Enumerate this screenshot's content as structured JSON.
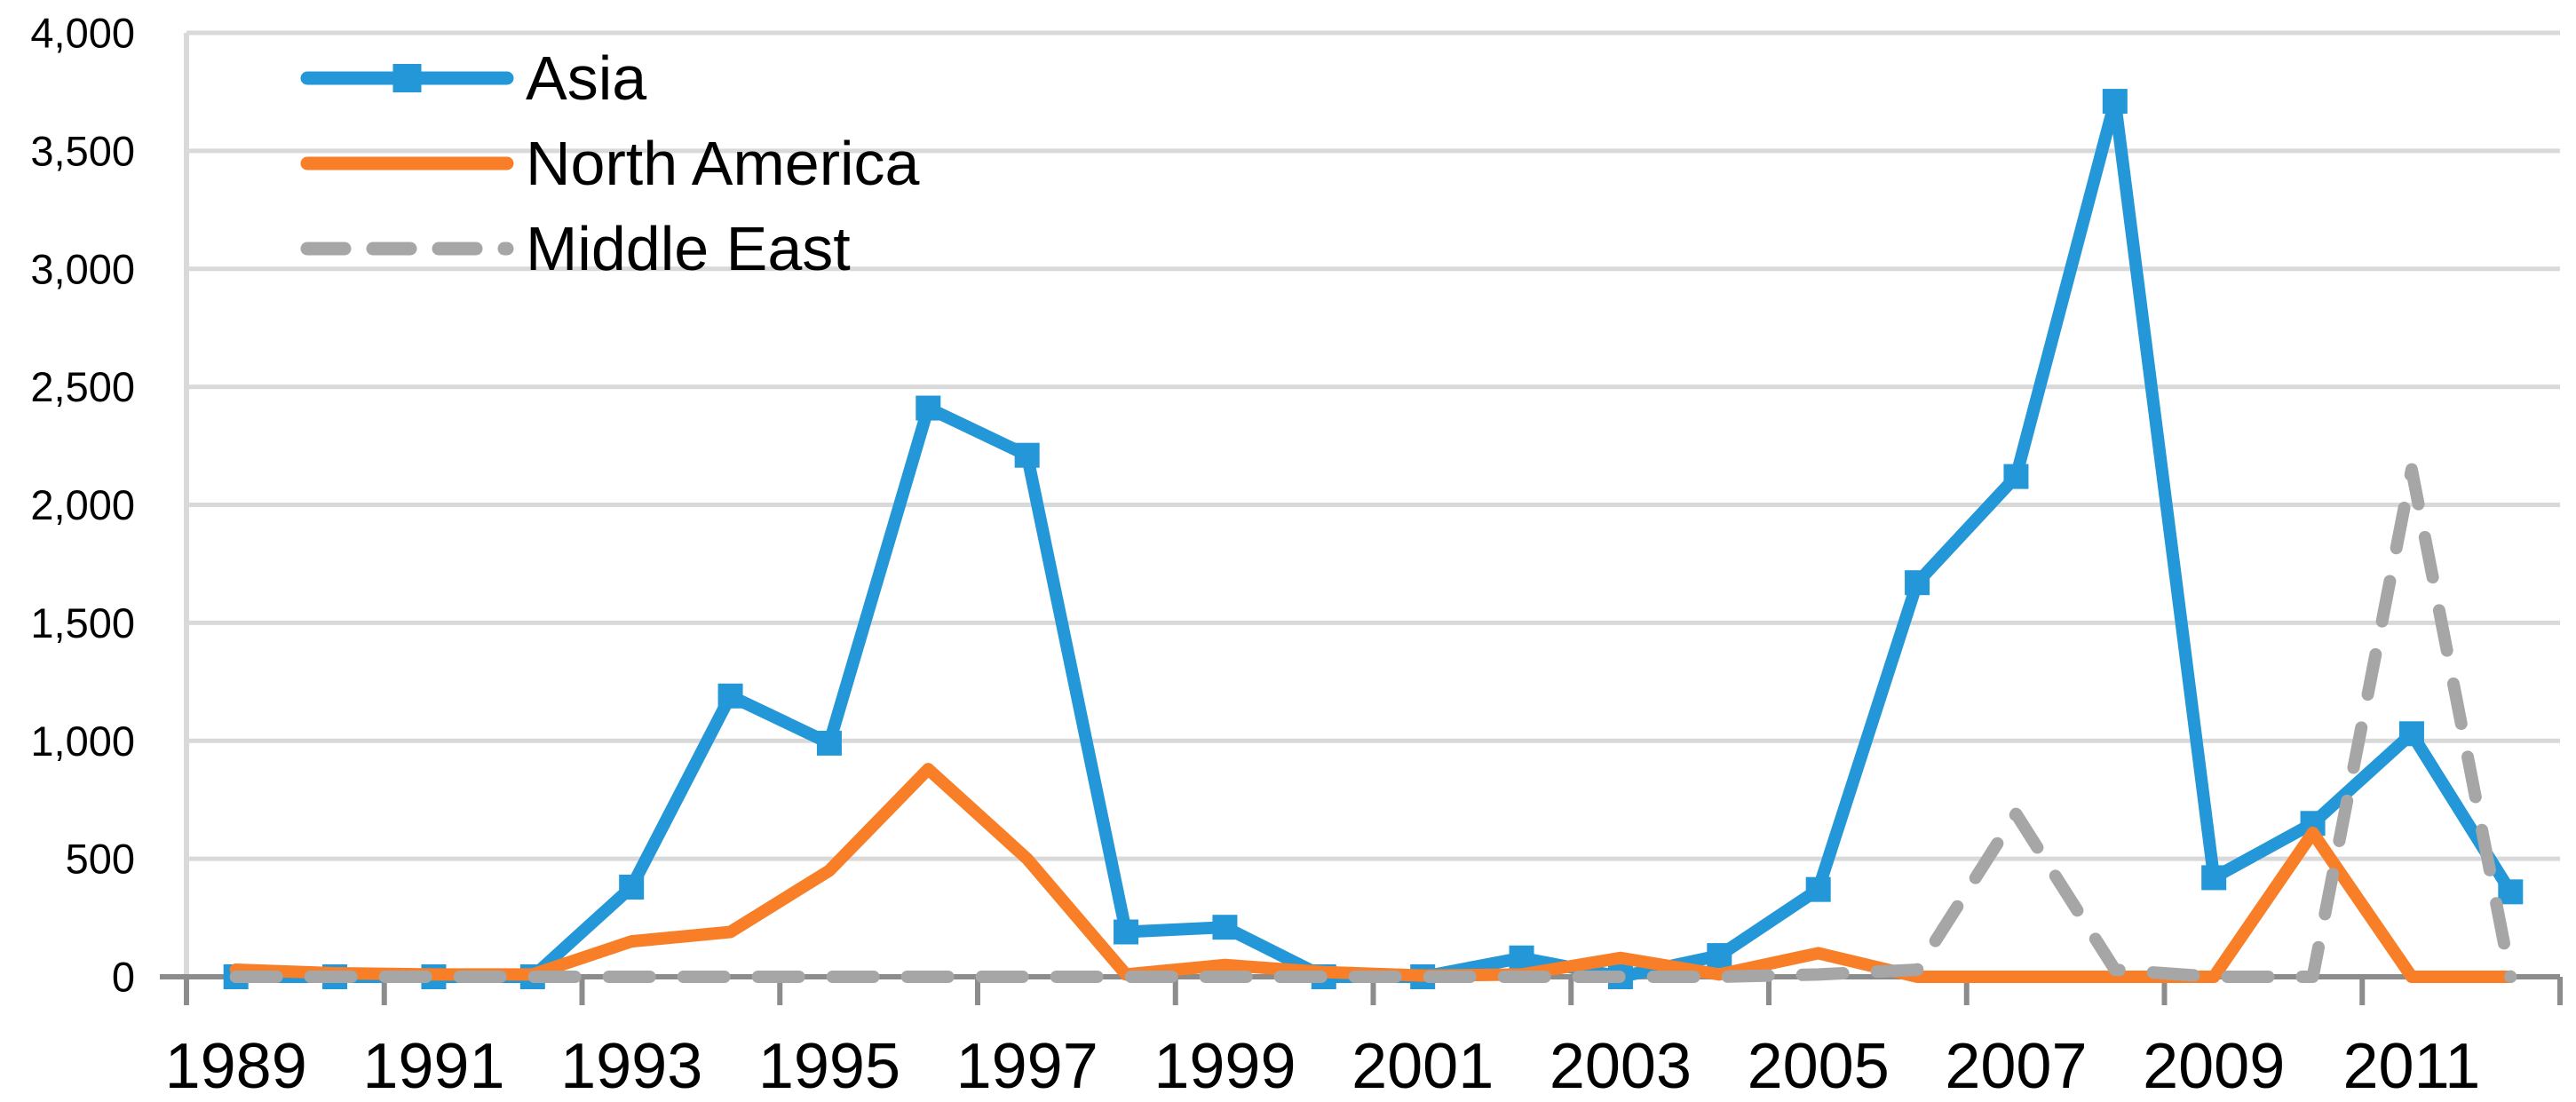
{
  "chart_data": {
    "type": "line",
    "title": "",
    "xlabel": "",
    "ylabel": "",
    "x": [
      1989,
      1990,
      1991,
      1992,
      1993,
      1994,
      1995,
      1996,
      1997,
      1998,
      1999,
      2000,
      2001,
      2002,
      2003,
      2004,
      2005,
      2006,
      2007,
      2008,
      2009,
      2010,
      2011,
      2012
    ],
    "x_tick_labels": [
      "1989",
      "1991",
      "1993",
      "1995",
      "1997",
      "1999",
      "2001",
      "2003",
      "2005",
      "2007",
      "2009",
      "2011"
    ],
    "x_tick_every": 2,
    "ylim": [
      0,
      4000
    ],
    "ytick_step": 500,
    "ytick_labels": [
      "0",
      "500",
      "1,000",
      "1,500",
      "2,000",
      "2,500",
      "3,000",
      "3,500",
      "4,000"
    ],
    "grid": "horizontal",
    "legend_position": "top-left",
    "series": [
      {
        "name": "Asia",
        "color": "#2397D7",
        "style": "solid",
        "marker": "square",
        "values": [
          0,
          0,
          0,
          0,
          380,
          1190,
          990,
          2410,
          2210,
          190,
          210,
          0,
          0,
          80,
          0,
          90,
          370,
          1670,
          2120,
          3710,
          420,
          650,
          1030,
          360
        ]
      },
      {
        "name": "North America",
        "color": "#F87F28",
        "style": "solid",
        "marker": "none",
        "values": [
          30,
          15,
          10,
          10,
          150,
          190,
          450,
          880,
          500,
          10,
          50,
          20,
          5,
          10,
          80,
          10,
          100,
          0,
          0,
          0,
          0,
          610,
          0,
          0
        ]
      },
      {
        "name": "Middle East",
        "color": "#A6A6A6",
        "style": "dashed",
        "marker": "none",
        "values": [
          0,
          0,
          0,
          0,
          0,
          0,
          0,
          0,
          0,
          0,
          0,
          0,
          0,
          0,
          0,
          0,
          10,
          30,
          690,
          30,
          0,
          0,
          2150,
          0
        ]
      }
    ],
    "style": {
      "grid_color": "#D9D9D9",
      "axis_color": "#8C8C8C",
      "label_color": "#000000"
    }
  }
}
